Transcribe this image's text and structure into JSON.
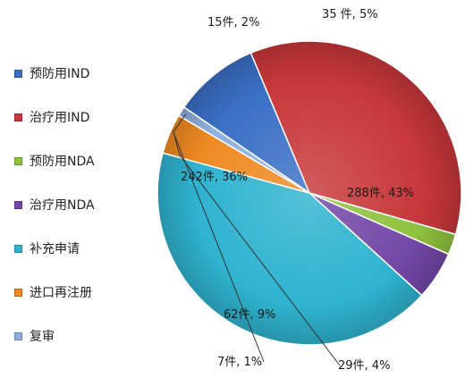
{
  "chart_data": {
    "type": "pie",
    "title": "",
    "legend_position": "left",
    "slices": [
      {
        "name": "预防用IND",
        "count": 62,
        "percent": 9,
        "label": "62件, 9%",
        "color": "#3a6fc4"
      },
      {
        "name": "治疗用IND",
        "count": 242,
        "percent": 36,
        "label": "242件, 36%",
        "color": "#c7373a"
      },
      {
        "name": "预防用NDA",
        "count": 15,
        "percent": 2,
        "label": "15件, 2%",
        "color": "#8fc23f"
      },
      {
        "name": "治疗用NDA",
        "count": 35,
        "percent": 5,
        "label": "35 件, 5%",
        "color": "#7448a8"
      },
      {
        "name": "补充申请",
        "count": 288,
        "percent": 43,
        "label": "288件, 43%",
        "color": "#2fb3cf"
      },
      {
        "name": "进口再注册",
        "count": 29,
        "percent": 4,
        "label": "29件, 4%",
        "color": "#ef8a22"
      },
      {
        "name": "复审",
        "count": 7,
        "percent": 1,
        "label": "7件, 1%",
        "color": "#8fb0dd"
      }
    ]
  }
}
